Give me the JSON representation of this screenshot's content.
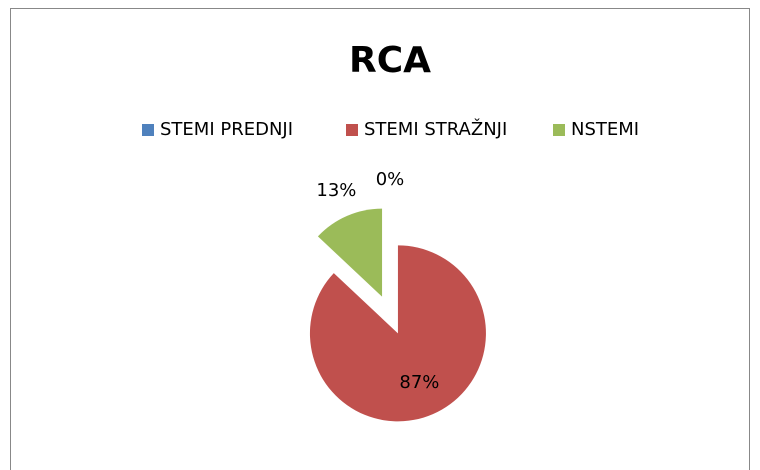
{
  "chart_data": {
    "type": "pie",
    "title": "RCA",
    "categories": [
      "STEMI PREDNJI",
      "STEMI STRAŽNJI",
      "NSTEMI"
    ],
    "values": [
      0,
      87,
      13
    ],
    "value_labels": [
      "0%",
      "87%",
      "13%"
    ],
    "colors": [
      "#4f81bd",
      "#c0504d",
      "#9bbb59"
    ],
    "legend": "top"
  }
}
